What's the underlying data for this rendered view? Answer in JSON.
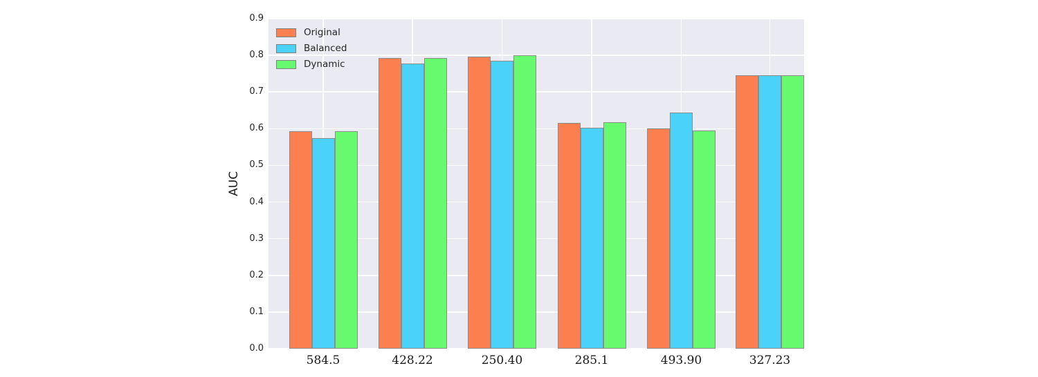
{
  "chart_data": {
    "type": "bar",
    "title": "",
    "xlabel": "",
    "ylabel": "AUC",
    "categories": [
      "584.5",
      "428.22",
      "250.40",
      "285.1",
      "493.90",
      "327.23"
    ],
    "series": [
      {
        "name": "Original",
        "color": "#FC804F",
        "values": [
          0.593,
          0.793,
          0.796,
          0.615,
          0.6,
          0.746
        ]
      },
      {
        "name": "Balanced",
        "color": "#4BD2FB",
        "values": [
          0.574,
          0.777,
          0.786,
          0.602,
          0.644,
          0.746
        ]
      },
      {
        "name": "Dynamic",
        "color": "#68FA6E",
        "values": [
          0.593,
          0.793,
          0.8,
          0.617,
          0.595,
          0.746
        ]
      }
    ],
    "ylim": [
      0.0,
      0.9
    ],
    "ytick_labels": [
      "0.0",
      "0.1",
      "0.2",
      "0.3",
      "0.4",
      "0.5",
      "0.6",
      "0.7",
      "0.8",
      "0.9"
    ],
    "grid": true,
    "legend_position": "upper-left",
    "colors": {
      "plot_background": "#EAEAF2",
      "grid_line": "#FFFFFF",
      "bar_edge": "#8C8C8C",
      "tick_text": "#262626",
      "axis_label_text": "#1a1a1a"
    }
  }
}
